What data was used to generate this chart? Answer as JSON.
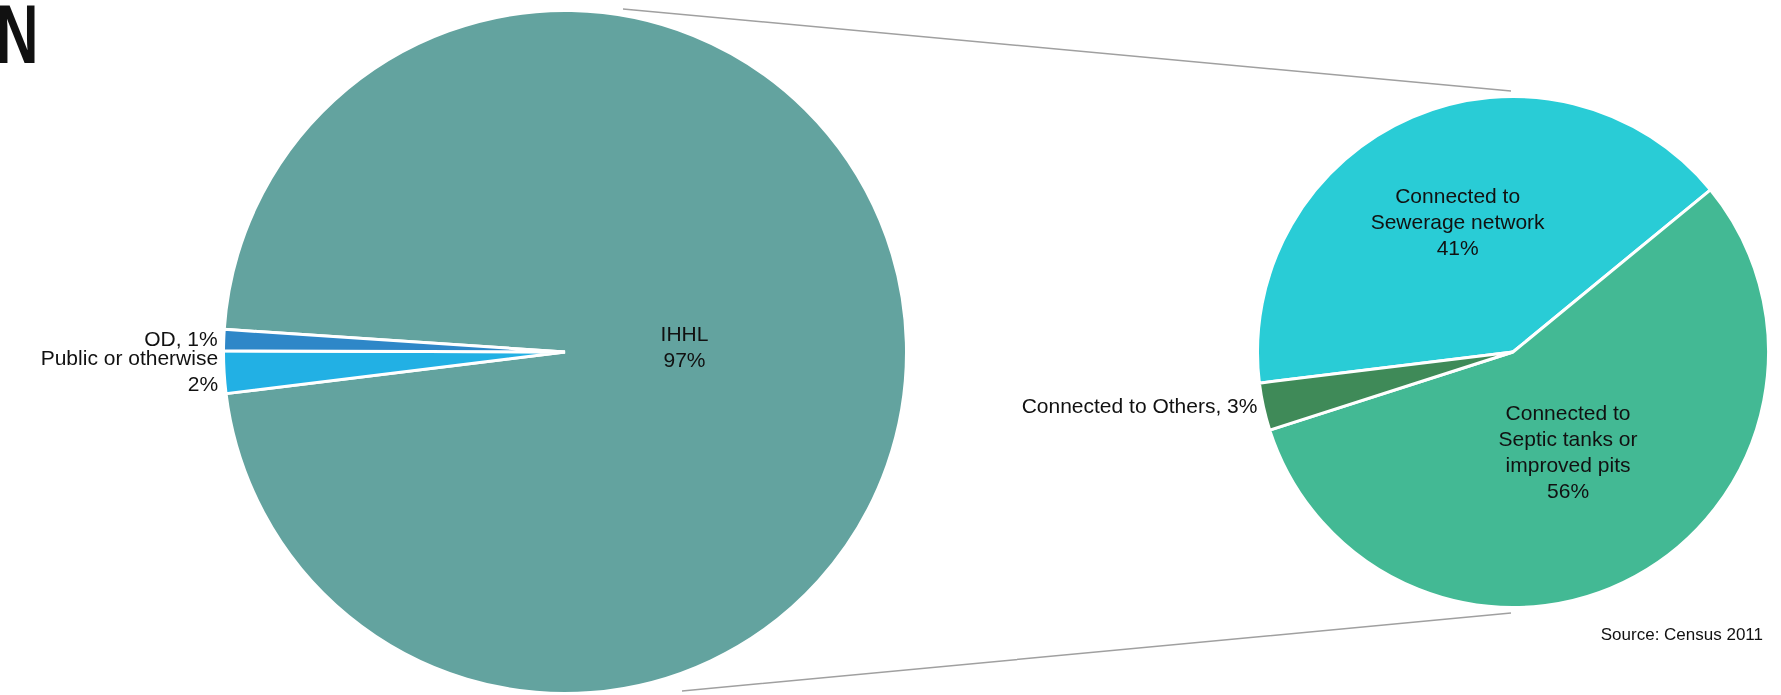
{
  "chart_data": [
    {
      "type": "pie",
      "title": "N",
      "categories": [
        "IHHL",
        "Public or otherwise",
        "OD"
      ],
      "values": [
        97,
        2,
        1
      ],
      "value_labels": [
        "97%",
        "2%",
        "1%"
      ],
      "colors": [
        "#63a39f",
        "#22b0e4",
        "#2e87c8"
      ]
    },
    {
      "type": "pie",
      "categories": [
        "Connected to Sewerage network",
        "Connected to Septic tanks or improved pits",
        "Connected to Others"
      ],
      "values": [
        41,
        56,
        3
      ],
      "value_labels": [
        "41%",
        "56%",
        "3%"
      ],
      "colors": [
        "#29ccd6",
        "#43b994",
        "#3f8a58"
      ],
      "annotations": [
        "Source: Census 2011"
      ]
    }
  ]
}
